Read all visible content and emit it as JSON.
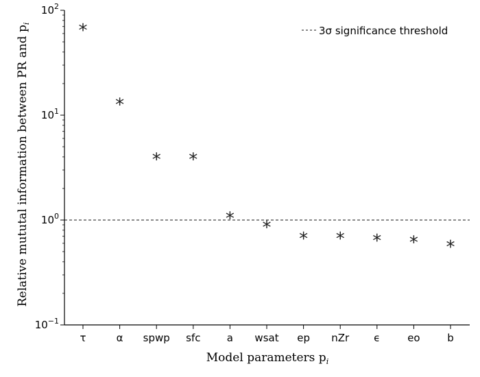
{
  "chart_data": {
    "type": "scatter",
    "categories": [
      "τ",
      "α",
      "spwp",
      "sfc",
      "a",
      "wsat",
      "ep",
      "nZr",
      "ϵ",
      "eo",
      "b"
    ],
    "values": [
      72,
      14,
      4.2,
      4.2,
      1.15,
      0.95,
      0.74,
      0.74,
      0.71,
      0.68,
      0.62
    ],
    "marker": "*",
    "ylabel": "Relative mututal information between PR and p",
    "ylabel_subscript": "i",
    "xlabel": "Model parameters p",
    "xlabel_subscript": "i",
    "yscale": "log",
    "ylim": [
      0.1,
      100
    ],
    "yticks": [
      {
        "value": 0.1,
        "base": "10",
        "exp": "−1"
      },
      {
        "value": 1,
        "base": "10",
        "exp": "0"
      },
      {
        "value": 10,
        "base": "10",
        "exp": "1"
      },
      {
        "value": 100,
        "base": "10",
        "exp": "2"
      }
    ],
    "threshold": {
      "value": 1.0,
      "label": "3σ significance threshold",
      "style": "dashed"
    },
    "legend_position": "top-right",
    "grid": false,
    "colors": {
      "marker": "#222222",
      "axis": "#000000",
      "threshold": "#444444"
    }
  }
}
